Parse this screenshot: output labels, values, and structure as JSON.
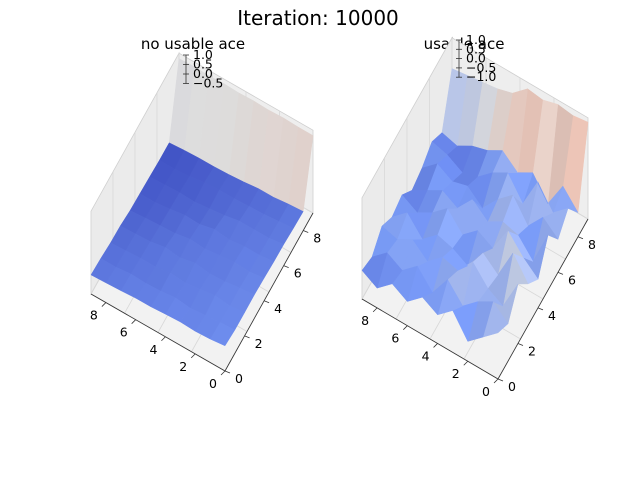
{
  "figure": {
    "title": "Iteration: 10000"
  },
  "chart_data": [
    {
      "type": "surface3d",
      "title": "no usable ace",
      "colormap": "coolwarm",
      "x_ticks": [
        0,
        2,
        4,
        6,
        8
      ],
      "y_ticks": [
        0,
        2,
        4,
        6,
        8
      ],
      "z_ticks": [
        "1.0",
        "0.5",
        "0.0",
        "−0.5"
      ],
      "zlim": [
        -1,
        1
      ],
      "z": [
        [
          -0.55,
          -0.6,
          -0.6,
          -0.6,
          -0.62,
          -0.65,
          -0.66,
          -0.7,
          -0.72,
          0.9
        ],
        [
          -0.6,
          -0.62,
          -0.65,
          -0.64,
          -0.68,
          -0.7,
          -0.72,
          -0.74,
          -0.75,
          0.9
        ],
        [
          -0.62,
          -0.66,
          -0.6,
          -0.7,
          -0.65,
          -0.7,
          -0.72,
          -0.78,
          -0.8,
          0.92
        ],
        [
          -0.6,
          -0.7,
          -0.66,
          -0.72,
          -0.7,
          -0.75,
          -0.72,
          -0.8,
          -0.8,
          0.9
        ],
        [
          -0.62,
          -0.65,
          -0.72,
          -0.66,
          -0.75,
          -0.7,
          -0.8,
          -0.82,
          -0.85,
          0.92
        ],
        [
          -0.65,
          -0.7,
          -0.68,
          -0.75,
          -0.72,
          -0.8,
          -0.85,
          -0.82,
          -0.88,
          0.9
        ],
        [
          -0.65,
          -0.72,
          -0.75,
          -0.7,
          -0.8,
          -0.78,
          -0.9,
          -0.85,
          -0.9,
          0.92
        ],
        [
          -0.68,
          -0.7,
          -0.75,
          -0.78,
          -0.82,
          -0.85,
          -0.88,
          -0.92,
          -0.9,
          0.9
        ],
        [
          -0.7,
          -0.75,
          -0.78,
          -0.8,
          -0.85,
          -0.9,
          -0.9,
          -0.95,
          -0.92,
          0.92
        ],
        [
          -0.72,
          -0.75,
          -0.8,
          -0.82,
          -0.88,
          -0.9,
          -0.92,
          -0.95,
          -0.95,
          0.9
        ]
      ]
    },
    {
      "type": "surface3d",
      "title": "usable ace",
      "colormap": "coolwarm",
      "x_ticks": [
        0,
        2,
        4,
        6,
        8
      ],
      "y_ticks": [
        0,
        2,
        4,
        6,
        8
      ],
      "z_ticks": [
        "1.0",
        "0.5",
        "0.0",
        "−0.5",
        "−1.0"
      ],
      "zlim": [
        -1,
        1
      ],
      "z": [
        [
          -0.2,
          -0.4,
          0.1,
          -0.3,
          -0.6,
          0.0,
          -0.5,
          -0.2,
          -0.7,
          0.95
        ],
        [
          -0.5,
          -0.1,
          -0.6,
          0.2,
          -0.3,
          -0.8,
          -0.2,
          -0.5,
          -0.3,
          0.9
        ],
        [
          -0.8,
          -0.3,
          -0.4,
          -0.5,
          0.1,
          -0.4,
          -0.6,
          0.0,
          -0.9,
          0.95
        ],
        [
          -0.3,
          -0.6,
          0.0,
          -0.2,
          -0.5,
          -0.3,
          -0.1,
          -0.7,
          -0.4,
          0.85
        ],
        [
          -0.6,
          -0.2,
          -0.4,
          -0.7,
          -0.3,
          -0.5,
          -0.4,
          -0.2,
          -0.6,
          0.9
        ],
        [
          -0.4,
          -0.7,
          -0.3,
          -0.5,
          -0.6,
          -0.2,
          -0.8,
          -0.4,
          -0.3,
          0.6
        ],
        [
          -0.7,
          -0.3,
          -0.6,
          -0.4,
          -0.2,
          -0.6,
          -0.5,
          -0.7,
          -0.5,
          0.5
        ],
        [
          -0.5,
          -0.6,
          -0.3,
          -0.7,
          -0.5,
          -0.4,
          -0.6,
          -0.8,
          -0.6,
          0.45
        ],
        [
          -0.8,
          -0.4,
          -0.5,
          -0.3,
          -0.7,
          -0.6,
          -0.4,
          -0.6,
          -0.8,
          0.4
        ],
        [
          -0.6,
          -0.7,
          -0.4,
          -0.6,
          -0.5,
          -0.8,
          -0.7,
          -0.5,
          -0.7,
          0.35
        ]
      ]
    }
  ]
}
